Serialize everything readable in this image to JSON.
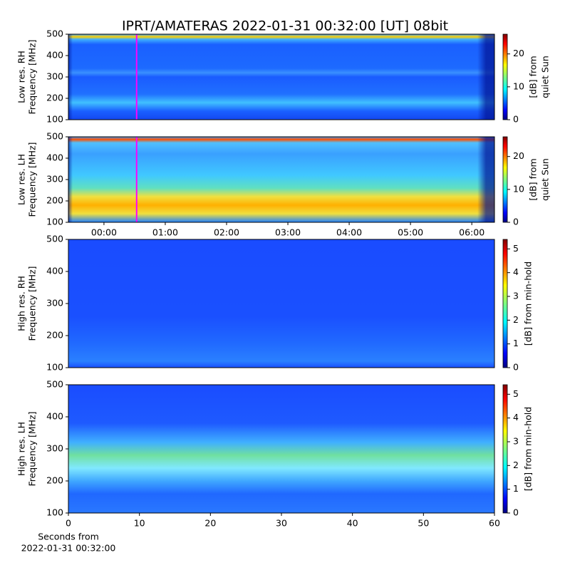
{
  "title": "IPRT/AMATERAS 2022-01-31 00:32:00 [UT]   08bit",
  "chart_data": [
    {
      "type": "heatmap",
      "ylabel": [
        "Low res. RH",
        "Frequency [MHz]"
      ],
      "ylim": [
        100,
        500
      ],
      "yticks": [
        100,
        200,
        300,
        400,
        500
      ],
      "xlim": [
        -0.58,
        6.37
      ],
      "clim": [
        0,
        26
      ],
      "cticks": [
        0,
        10,
        20
      ],
      "clabel": [
        "[dB] from",
        "quiet Sun"
      ],
      "marker_x": 0.533,
      "marker_color": "#ff00ff"
    },
    {
      "type": "heatmap",
      "ylabel": [
        "Low res. LH",
        "Frequency [MHz]"
      ],
      "ylim": [
        100,
        500
      ],
      "yticks": [
        100,
        200,
        300,
        400,
        500
      ],
      "xlim": [
        -0.58,
        6.37
      ],
      "xticks": [
        {
          "value": 0,
          "label": "00:00"
        },
        {
          "value": 1,
          "label": "01:00"
        },
        {
          "value": 2,
          "label": "02:00"
        },
        {
          "value": 3,
          "label": "03:00"
        },
        {
          "value": 4,
          "label": "04:00"
        },
        {
          "value": 5,
          "label": "05:00"
        },
        {
          "value": 6,
          "label": "06:00"
        }
      ],
      "clim": [
        0,
        26
      ],
      "cticks": [
        0,
        10,
        20
      ],
      "clabel": [
        "[dB] from",
        "quiet Sun"
      ],
      "marker_x": 0.533,
      "marker_color": "#ff00ff"
    },
    {
      "type": "heatmap",
      "ylabel": [
        "High res. RH",
        "Frequency [MHz]"
      ],
      "ylim": [
        100,
        500
      ],
      "yticks": [
        100,
        200,
        300,
        400,
        500
      ],
      "xlim": [
        0,
        60
      ],
      "clim": [
        0,
        5.4
      ],
      "cticks": [
        0,
        1,
        2,
        3,
        4,
        5
      ],
      "clabel": [
        "[dB] from min-hold"
      ]
    },
    {
      "type": "heatmap",
      "ylabel": [
        "High res. LH",
        "Frequency [MHz]"
      ],
      "ylim": [
        100,
        500
      ],
      "yticks": [
        100,
        200,
        300,
        400,
        500
      ],
      "xlim": [
        0,
        60
      ],
      "xticks": [
        0,
        10,
        20,
        30,
        40,
        50,
        60
      ],
      "xlabel": [
        "Seconds from",
        "2022-01-31 00:32:00"
      ],
      "clim": [
        0,
        5.4
      ],
      "cticks": [
        0,
        1,
        2,
        3,
        4,
        5
      ],
      "clabel": [
        "[dB] from min-hold"
      ]
    }
  ]
}
